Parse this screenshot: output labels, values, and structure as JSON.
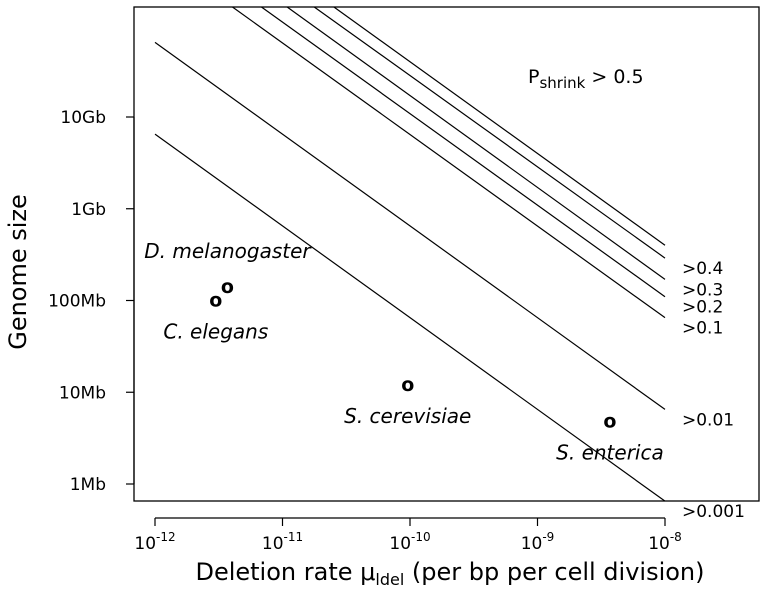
{
  "chart_data": {
    "type": "line",
    "xlabel_main": "Deletion rate μ",
    "xlabel_sub": "ldel",
    "xlabel_tail": " (per bp per cell division)",
    "ylabel": "Genome size",
    "x_scale": "log",
    "y_scale": "log",
    "xlim": [
      1e-12,
      1e-08
    ],
    "ylim": [
      1000000.0,
      10000000000.0
    ],
    "x_ticks": [
      {
        "value": 1e-12,
        "base": "10",
        "exp": "-12"
      },
      {
        "value": 1e-11,
        "base": "10",
        "exp": "-11"
      },
      {
        "value": 1e-10,
        "base": "10",
        "exp": "-10"
      },
      {
        "value": 1e-09,
        "base": "10",
        "exp": "-9"
      },
      {
        "value": 1e-08,
        "base": "10",
        "exp": "-8"
      }
    ],
    "y_ticks": [
      {
        "value": 1000000.0,
        "label": "1Mb"
      },
      {
        "value": 10000000.0,
        "label": "10Mb"
      },
      {
        "value": 100000000.0,
        "label": "100Mb"
      },
      {
        "value": 1000000000.0,
        "label": "1Gb"
      },
      {
        "value": 10000000000.0,
        "label": "10Gb"
      }
    ],
    "title_annotation": {
      "main": "P",
      "sub": "shrink",
      "tail": " > 0.5"
    },
    "series": [
      {
        "label": ">0.001",
        "x": [
          1e-12,
          1e-08
        ],
        "y": [
          6500000000.0,
          650000.0
        ]
      },
      {
        "label": ">0.01",
        "x": [
          1e-12,
          1e-08
        ],
        "y": [
          65000000000.0,
          6500000.0
        ]
      },
      {
        "label": ">0.1",
        "x": [
          3.2e-12,
          1e-08
        ],
        "y": [
          200000000000.0,
          65000000.0
        ]
      },
      {
        "label": ">0.2",
        "x": [
          5.4e-12,
          1e-08
        ],
        "y": [
          200000000000.0,
          110000000.0
        ]
      },
      {
        "label": ">0.3",
        "x": [
          8.6e-12,
          1e-08
        ],
        "y": [
          200000000000.0,
          170000000.0
        ]
      },
      {
        "label": ">0.4",
        "x": [
          1.4e-11,
          1e-08
        ],
        "y": [
          200000000000.0,
          290000000.0
        ]
      },
      {
        "label": "",
        "x": [
          2e-11,
          1e-08
        ],
        "y": [
          200000000000.0,
          400000000.0
        ]
      }
    ],
    "points": [
      {
        "name": "D. melanogaster",
        "x": 3.7e-12,
        "y": 140000000.0,
        "marker": "o",
        "label_pos": "above"
      },
      {
        "name": "C. elegans",
        "x": 3e-12,
        "y": 100000000.0,
        "marker": "o",
        "label_pos": "below"
      },
      {
        "name": "S. cerevisiae",
        "x": 9.6e-11,
        "y": 12000000.0,
        "marker": "o",
        "label_pos": "below"
      },
      {
        "name": "S. enterica",
        "x": 3.7e-09,
        "y": 4800000.0,
        "marker": "o",
        "label_pos": "below"
      }
    ],
    "grid": false,
    "legend": "none"
  }
}
